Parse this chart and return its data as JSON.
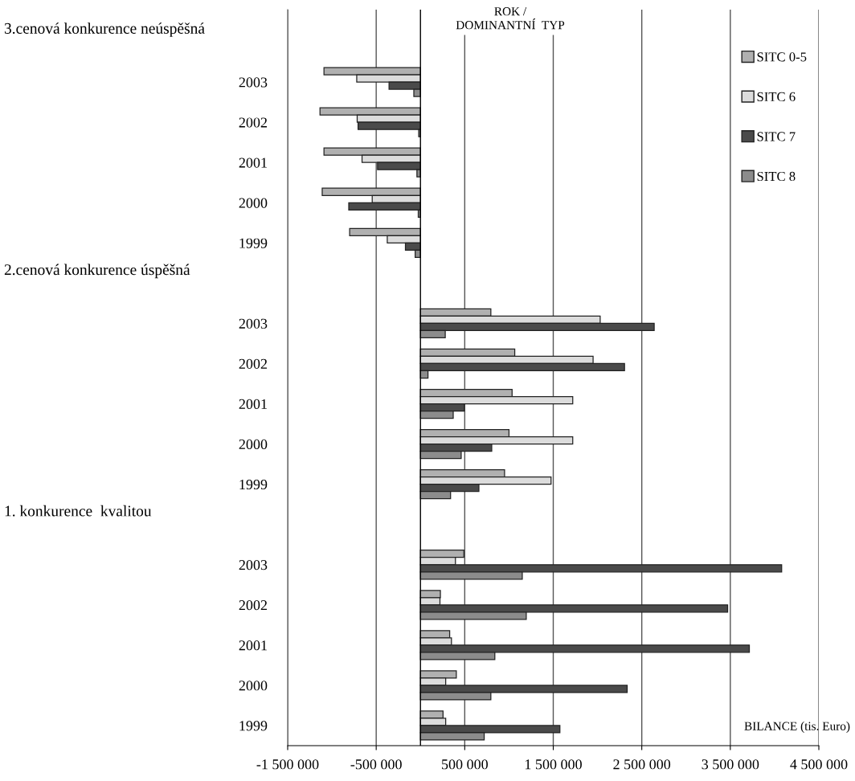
{
  "chart_data": {
    "type": "bar",
    "orientation": "horizontal",
    "categories": [
      null,
      "2003",
      "2002",
      "2001",
      "2000",
      "1999",
      null,
      "2003",
      "2002",
      "2001",
      "2000",
      "1999",
      null,
      "2003",
      "2002",
      "2001",
      "2000",
      "1999"
    ],
    "series": [
      {
        "name": "SITC 0-5",
        "color": "#b0b0b0",
        "values": [
          null,
          -1090000,
          -1135000,
          -1090000,
          -1110000,
          -800000,
          null,
          795000,
          1065000,
          1035000,
          1000000,
          950000,
          null,
          490000,
          225000,
          330000,
          405000,
          255000
        ]
      },
      {
        "name": "SITC 6",
        "color": "#dcdcdc",
        "values": [
          null,
          -720000,
          -715000,
          -660000,
          -545000,
          -375000,
          null,
          2030000,
          1950000,
          1720000,
          1720000,
          1475000,
          null,
          395000,
          220000,
          350000,
          285000,
          285000
        ]
      },
      {
        "name": "SITC 7",
        "color": "#4a4a4a",
        "values": [
          null,
          -355000,
          -705000,
          -485000,
          -810000,
          -170000,
          null,
          2640000,
          2305000,
          495000,
          805000,
          660000,
          null,
          4080000,
          3470000,
          3715000,
          2335000,
          1575000
        ]
      },
      {
        "name": "SITC 8",
        "color": "#8c8c8c",
        "values": [
          null,
          -75000,
          -20000,
          -40000,
          -25000,
          -60000,
          null,
          280000,
          85000,
          370000,
          460000,
          340000,
          null,
          1150000,
          1195000,
          840000,
          795000,
          720000
        ]
      }
    ],
    "xlim": [
      -1500000,
      4500000
    ],
    "xticks": [
      {
        "value": -1500000,
        "label": "-1 500 000"
      },
      {
        "value": -500000,
        "label": "-500 000"
      },
      {
        "value": 500000,
        "label": "500 000"
      },
      {
        "value": 1500000,
        "label": "1 500 000"
      },
      {
        "value": 2500000,
        "label": "2 500 000"
      },
      {
        "value": 3500000,
        "label": "3 500 000"
      },
      {
        "value": 4500000,
        "label": "4 500 000"
      }
    ],
    "grid": "x",
    "legend": "top right",
    "annotations": [
      "3.cenová konkurence neúspěšná",
      "2.cenová konkurence úspěšná",
      "1. konkurence  kvalitou",
      "ROK /\nDOMINANTNÍ  TYP",
      "BILANCE (tis. Euro)"
    ]
  }
}
